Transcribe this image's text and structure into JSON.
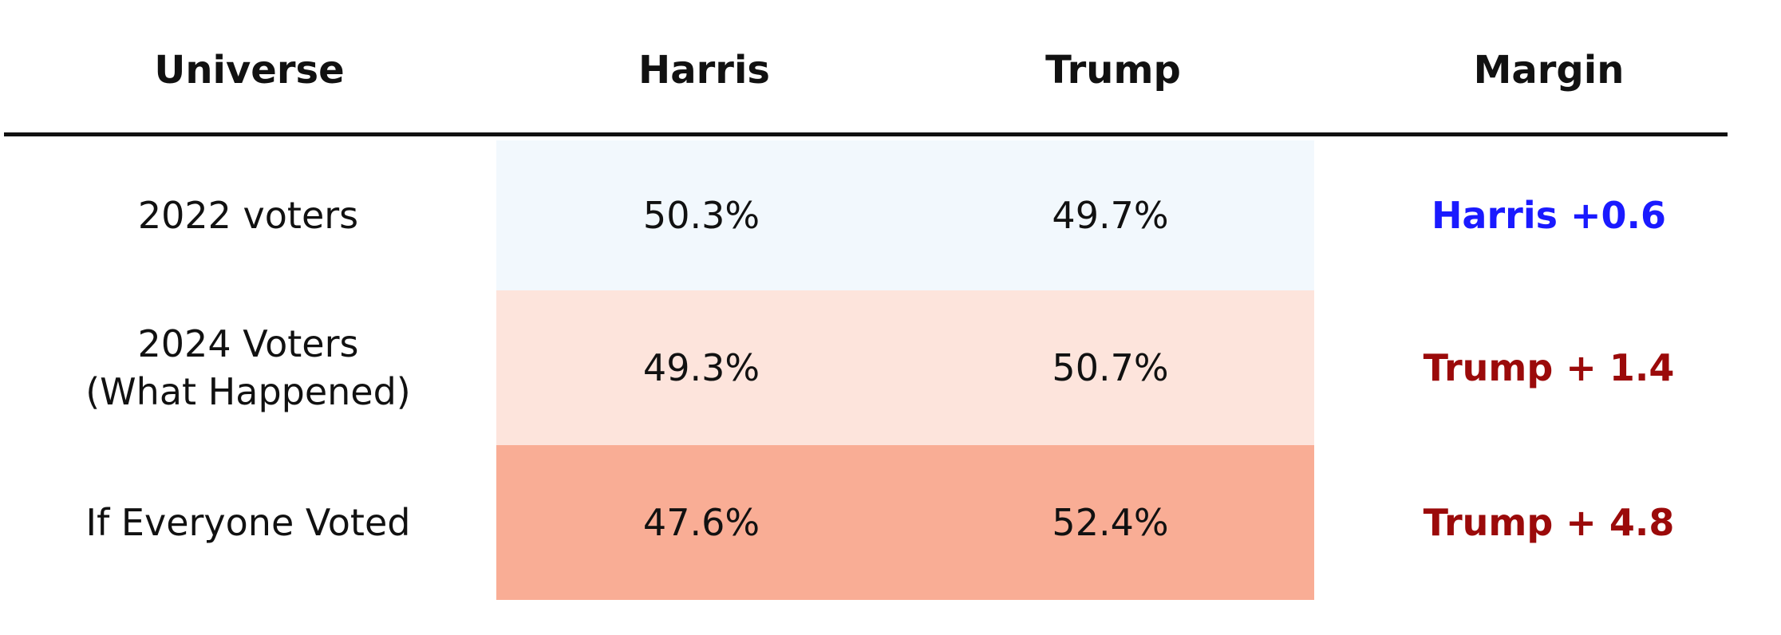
{
  "chart_data": {
    "type": "table",
    "columns": [
      "Universe",
      "Harris",
      "Trump",
      "Margin"
    ],
    "rows": [
      {
        "universe": "2022 voters",
        "universe_sub": "",
        "harris": "50.3%",
        "trump": "49.7%",
        "margin": "Harris +0.6",
        "margin_color": "#1a1aff",
        "fill_color": "#f2f8fd"
      },
      {
        "universe": "2024 Voters",
        "universe_sub": "(What Happened)",
        "harris": "49.3%",
        "trump": "50.7%",
        "margin": "Trump + 1.4",
        "margin_color": "#9b0a0a",
        "fill_color": "#fde4dc"
      },
      {
        "universe": "If Everyone Voted",
        "universe_sub": "",
        "harris": "47.6%",
        "trump": "52.4%",
        "margin": "Trump + 4.8",
        "margin_color": "#9b0a0a",
        "fill_color": "#f9ad95"
      }
    ]
  }
}
